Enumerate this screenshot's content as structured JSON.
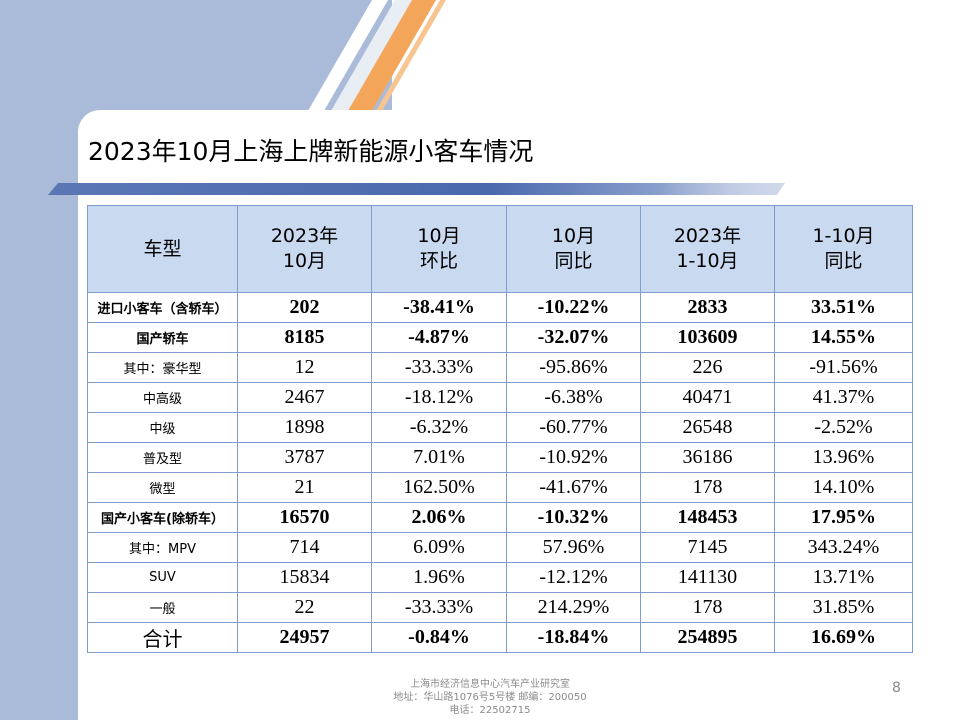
{
  "slide": {
    "title": "2023年10月上海上牌新能源小客车情况",
    "page_number": "8"
  },
  "table": {
    "headers": [
      {
        "line1": "车型",
        "line2": ""
      },
      {
        "line1": "2023年",
        "line2": "10月"
      },
      {
        "line1": "10月",
        "line2": "环比"
      },
      {
        "line1": "10月",
        "line2": "同比"
      },
      {
        "line1": "2023年",
        "line2": "1-10月"
      },
      {
        "line1": "1-10月",
        "line2": "同比"
      }
    ],
    "rows": [
      {
        "cells": [
          "进口小客车（含轿车）",
          "202",
          "-38.41%",
          "-10.22%",
          "2833",
          "33.51%"
        ]
      },
      {
        "cells": [
          "国产轿车",
          "8185",
          "-4.87%",
          "-32.07%",
          "103609",
          "14.55%"
        ]
      },
      {
        "cells": [
          "其中：豪华型",
          "12",
          "-33.33%",
          "-95.86%",
          "226",
          "-91.56%"
        ]
      },
      {
        "cells": [
          "中高级",
          "2467",
          "-18.12%",
          "-6.38%",
          "40471",
          "41.37%"
        ]
      },
      {
        "cells": [
          "中级",
          "1898",
          "-6.32%",
          "-60.77%",
          "26548",
          "-2.52%"
        ]
      },
      {
        "cells": [
          "普及型",
          "3787",
          "7.01%",
          "-10.92%",
          "36186",
          "13.96%"
        ]
      },
      {
        "cells": [
          "微型",
          "21",
          "162.50%",
          "-41.67%",
          "178",
          "14.10%"
        ]
      },
      {
        "cells": [
          "国产小客车(除轿车）",
          "16570",
          "2.06%",
          "-10.32%",
          "148453",
          "17.95%"
        ]
      },
      {
        "cells": [
          "其中：MPV",
          "714",
          "6.09%",
          "57.96%",
          "7145",
          "343.24%"
        ]
      },
      {
        "cells": [
          "SUV",
          "15834",
          "1.96%",
          "-12.12%",
          "141130",
          "13.71%"
        ]
      },
      {
        "cells": [
          "一般",
          "22",
          "-33.33%",
          "214.29%",
          "178",
          "31.85%"
        ]
      },
      {
        "cells": [
          "合计",
          "24957",
          "-0.84%",
          "-18.84%",
          "254895",
          "16.69%"
        ]
      }
    ]
  },
  "footer": {
    "line1": "上海市经济信息中心汽车产业研究室",
    "line2": "地址：华山路1076号5号楼    邮编：200050",
    "line3": "电话：22502715"
  },
  "colors": {
    "header_fill": "#c9d9ef",
    "border": "#7f9ccf",
    "side_panel": "#a9bbd9",
    "accent_orange": "#f3a65a",
    "title_bar": "#4a69ad"
  }
}
